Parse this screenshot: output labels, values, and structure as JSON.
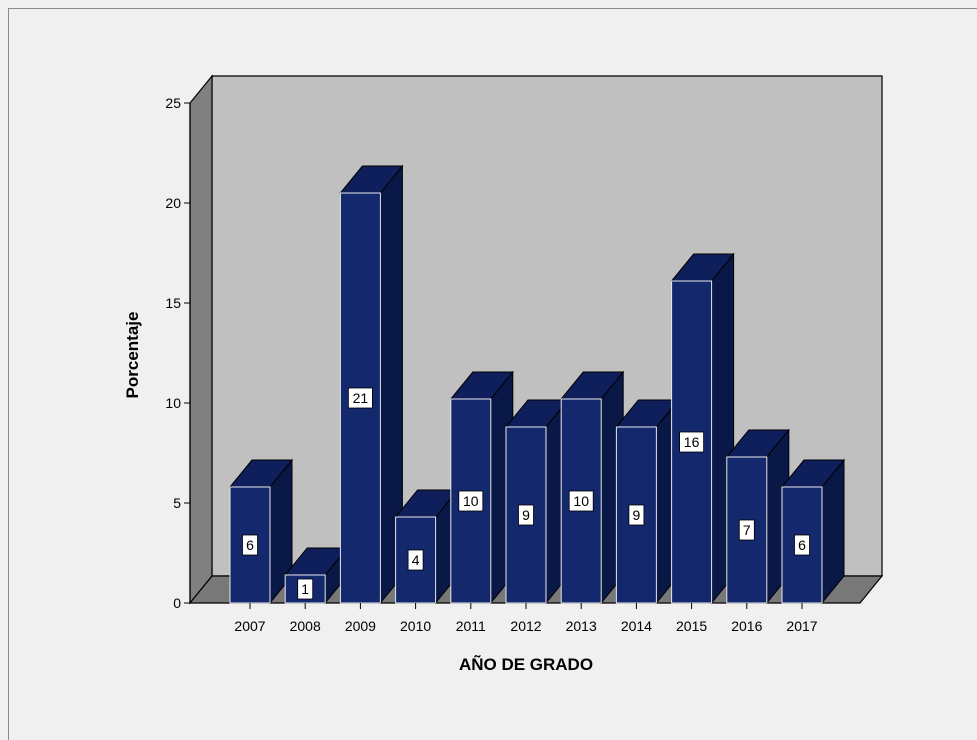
{
  "chart_data": {
    "type": "bar",
    "categories": [
      "2007",
      "2008",
      "2009",
      "2010",
      "2011",
      "2012",
      "2013",
      "2014",
      "2015",
      "2016",
      "2017"
    ],
    "values": [
      5.8,
      1.4,
      20.5,
      4.3,
      10.2,
      8.8,
      10.2,
      8.8,
      16.1,
      7.3,
      5.8
    ],
    "data_labels": [
      "6",
      "1",
      "21",
      "4",
      "10",
      "9",
      "10",
      "9",
      "16",
      "7",
      "6"
    ],
    "xlabel": "AÑO DE GRADO",
    "ylabel": "Porcentaje",
    "yticks": [
      0,
      5,
      10,
      15,
      20,
      25
    ],
    "ylim": [
      0,
      25
    ],
    "colors": {
      "bar_front": "#14286e",
      "bar_side": "#0a1848",
      "bar_top": "#0f1f5c",
      "wall": "#c0c0c0",
      "wall_side": "#808080",
      "floor": "#787878"
    }
  }
}
